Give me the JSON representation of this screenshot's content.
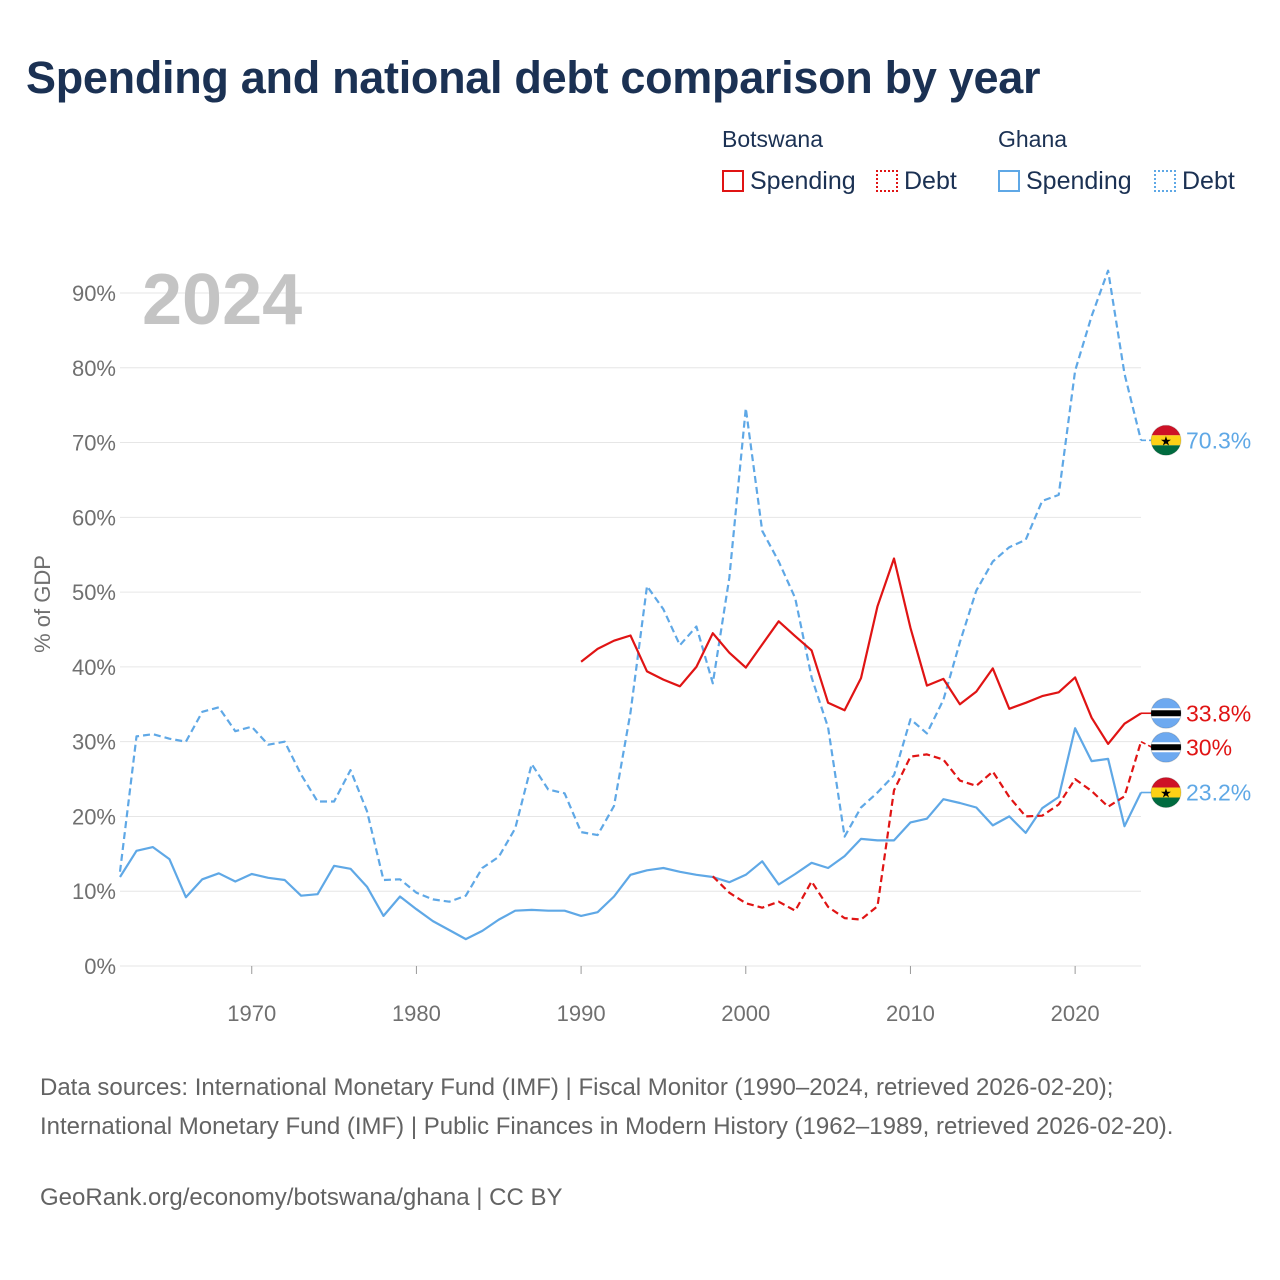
{
  "title": "Spending and national debt comparison by year",
  "legend": {
    "groups": [
      {
        "label": "Botswana",
        "items": [
          "Spending",
          "Debt"
        ]
      },
      {
        "label": "Ghana",
        "items": [
          "Spending",
          "Debt"
        ]
      }
    ]
  },
  "year_label": "2024",
  "source": "Data sources: International Monetary Fund (IMF) | Fiscal Monitor (1990–2024, retrieved 2026-02-20); International Monetary Fund (IMF) | Public Finances in Modern History (1962–1989, retrieved 2026-02-20).",
  "credit": "GeoRank.org/economy/botswana/ghana | CC BY",
  "colors": {
    "botswana": "#e01414",
    "ghana": "#5fa8e6",
    "grid": "#e6e6e6",
    "axis_text": "#707070",
    "year_watermark": "#c4c4c4"
  },
  "end_labels": [
    {
      "series": "Ghana Debt",
      "text": "70.3%",
      "flag": "ghana"
    },
    {
      "series": "Botswana Spending",
      "text": "33.8%",
      "flag": "botswana"
    },
    {
      "series": "Botswana Debt",
      "text": "30%",
      "flag": "botswana"
    },
    {
      "series": "Ghana Spending",
      "text": "23.2%",
      "flag": "ghana"
    }
  ],
  "chart_data": {
    "type": "line",
    "title": "Spending and national debt comparison by year",
    "xlabel": "",
    "ylabel": "% of GDP",
    "xlim": [
      1962,
      2024
    ],
    "ylim": [
      0,
      90
    ],
    "xticks": [
      1970,
      1980,
      1990,
      2000,
      2010,
      2020
    ],
    "yticks": [
      0,
      10,
      20,
      30,
      40,
      50,
      60,
      70,
      80,
      90
    ],
    "ytick_labels": [
      "0%",
      "10%",
      "20%",
      "30%",
      "40%",
      "50%",
      "60%",
      "70%",
      "80%",
      "90%"
    ],
    "grid": true,
    "series": [
      {
        "name": "Ghana Debt",
        "country": "Ghana",
        "kind": "Debt",
        "style": "dashed",
        "color": "#5fa8e6",
        "points": [
          [
            1962,
            12.6
          ],
          [
            1963,
            30.7
          ],
          [
            1964,
            31.0
          ],
          [
            1965,
            30.4
          ],
          [
            1966,
            30.0
          ],
          [
            1967,
            34.0
          ],
          [
            1968,
            34.6
          ],
          [
            1969,
            31.4
          ],
          [
            1970,
            32.0
          ],
          [
            1971,
            29.6
          ],
          [
            1972,
            30.0
          ],
          [
            1973,
            25.6
          ],
          [
            1974,
            22.0
          ],
          [
            1975,
            22.0
          ],
          [
            1976,
            26.2
          ],
          [
            1977,
            20.7
          ],
          [
            1978,
            11.5
          ],
          [
            1979,
            11.6
          ],
          [
            1980,
            9.8
          ],
          [
            1981,
            8.9
          ],
          [
            1982,
            8.6
          ],
          [
            1983,
            9.4
          ],
          [
            1984,
            13.1
          ],
          [
            1985,
            14.6
          ],
          [
            1986,
            18.4
          ],
          [
            1987,
            27.0
          ],
          [
            1988,
            23.6
          ],
          [
            1989,
            23.1
          ],
          [
            1990,
            17.9
          ],
          [
            1991,
            17.5
          ],
          [
            1992,
            21.4
          ],
          [
            1993,
            33.9
          ],
          [
            1994,
            50.8
          ],
          [
            1995,
            47.7
          ],
          [
            1996,
            42.9
          ],
          [
            1997,
            45.4
          ],
          [
            1998,
            37.8
          ],
          [
            1999,
            51.9
          ],
          [
            2000,
            74.6
          ],
          [
            2001,
            58.2
          ],
          [
            2002,
            54.1
          ],
          [
            2003,
            49.2
          ],
          [
            2004,
            38.6
          ],
          [
            2005,
            31.9
          ],
          [
            2006,
            17.3
          ],
          [
            2007,
            21.2
          ],
          [
            2008,
            23.2
          ],
          [
            2009,
            25.5
          ],
          [
            2010,
            33.0
          ],
          [
            2011,
            31.1
          ],
          [
            2012,
            35.6
          ],
          [
            2013,
            43.3
          ],
          [
            2014,
            50.2
          ],
          [
            2015,
            54.1
          ],
          [
            2016,
            56.0
          ],
          [
            2017,
            57.0
          ],
          [
            2018,
            62.2
          ],
          [
            2019,
            63.0
          ],
          [
            2020,
            79.6
          ],
          [
            2021,
            86.9
          ],
          [
            2022,
            93.0
          ],
          [
            2023,
            79.2
          ],
          [
            2024,
            70.3
          ]
        ]
      },
      {
        "name": "Ghana Spending",
        "country": "Ghana",
        "kind": "Spending",
        "style": "solid",
        "color": "#5fa8e6",
        "points": [
          [
            1962,
            11.9
          ],
          [
            1963,
            15.4
          ],
          [
            1964,
            15.9
          ],
          [
            1965,
            14.3
          ],
          [
            1966,
            9.2
          ],
          [
            1967,
            11.6
          ],
          [
            1968,
            12.4
          ],
          [
            1969,
            11.3
          ],
          [
            1970,
            12.3
          ],
          [
            1971,
            11.8
          ],
          [
            1972,
            11.5
          ],
          [
            1973,
            9.4
          ],
          [
            1974,
            9.6
          ],
          [
            1975,
            13.4
          ],
          [
            1976,
            13.0
          ],
          [
            1977,
            10.6
          ],
          [
            1978,
            6.7
          ],
          [
            1979,
            9.3
          ],
          [
            1980,
            7.6
          ],
          [
            1981,
            6.0
          ],
          [
            1982,
            4.8
          ],
          [
            1983,
            3.6
          ],
          [
            1984,
            4.7
          ],
          [
            1985,
            6.2
          ],
          [
            1986,
            7.4
          ],
          [
            1987,
            7.5
          ],
          [
            1988,
            7.4
          ],
          [
            1989,
            7.4
          ],
          [
            1990,
            6.7
          ],
          [
            1991,
            7.2
          ],
          [
            1992,
            9.3
          ],
          [
            1993,
            12.2
          ],
          [
            1994,
            12.8
          ],
          [
            1995,
            13.1
          ],
          [
            1996,
            12.6
          ],
          [
            1997,
            12.2
          ],
          [
            1998,
            11.9
          ],
          [
            1999,
            11.2
          ],
          [
            2000,
            12.2
          ],
          [
            2001,
            14.0
          ],
          [
            2002,
            10.9
          ],
          [
            2003,
            12.3
          ],
          [
            2004,
            13.8
          ],
          [
            2005,
            13.1
          ],
          [
            2006,
            14.7
          ],
          [
            2007,
            17.0
          ],
          [
            2008,
            16.8
          ],
          [
            2009,
            16.8
          ],
          [
            2010,
            19.2
          ],
          [
            2011,
            19.7
          ],
          [
            2012,
            22.3
          ],
          [
            2013,
            21.8
          ],
          [
            2014,
            21.2
          ],
          [
            2015,
            18.8
          ],
          [
            2016,
            20.0
          ],
          [
            2017,
            17.8
          ],
          [
            2018,
            21.1
          ],
          [
            2019,
            22.6
          ],
          [
            2020,
            31.8
          ],
          [
            2021,
            27.4
          ],
          [
            2022,
            27.7
          ],
          [
            2023,
            18.7
          ],
          [
            2024,
            23.2
          ]
        ]
      },
      {
        "name": "Botswana Spending",
        "country": "Botswana",
        "kind": "Spending",
        "style": "solid",
        "color": "#e01414",
        "points": [
          [
            1990,
            40.7
          ],
          [
            1991,
            42.4
          ],
          [
            1992,
            43.5
          ],
          [
            1993,
            44.2
          ],
          [
            1994,
            39.4
          ],
          [
            1995,
            38.3
          ],
          [
            1996,
            37.4
          ],
          [
            1997,
            40.0
          ],
          [
            1998,
            44.5
          ],
          [
            1999,
            41.9
          ],
          [
            2000,
            39.9
          ],
          [
            2001,
            43.0
          ],
          [
            2002,
            46.1
          ],
          [
            2003,
            44.1
          ],
          [
            2004,
            42.2
          ],
          [
            2005,
            35.2
          ],
          [
            2006,
            34.2
          ],
          [
            2007,
            38.5
          ],
          [
            2008,
            48.1
          ],
          [
            2009,
            54.5
          ],
          [
            2010,
            45.2
          ],
          [
            2011,
            37.5
          ],
          [
            2012,
            38.4
          ],
          [
            2013,
            35.0
          ],
          [
            2014,
            36.7
          ],
          [
            2015,
            39.8
          ],
          [
            2016,
            34.4
          ],
          [
            2017,
            35.2
          ],
          [
            2018,
            36.1
          ],
          [
            2019,
            36.6
          ],
          [
            2020,
            38.6
          ],
          [
            2021,
            33.2
          ],
          [
            2022,
            29.7
          ],
          [
            2023,
            32.4
          ],
          [
            2024,
            33.8
          ]
        ]
      },
      {
        "name": "Botswana Debt",
        "country": "Botswana",
        "kind": "Debt",
        "style": "dashed",
        "color": "#e01414",
        "points": [
          [
            1998,
            12.0
          ],
          [
            1999,
            9.8
          ],
          [
            2000,
            8.4
          ],
          [
            2001,
            7.8
          ],
          [
            2002,
            8.6
          ],
          [
            2003,
            7.4
          ],
          [
            2004,
            11.3
          ],
          [
            2005,
            7.9
          ],
          [
            2006,
            6.4
          ],
          [
            2007,
            6.2
          ],
          [
            2008,
            8.0
          ],
          [
            2009,
            23.5
          ],
          [
            2010,
            28.0
          ],
          [
            2011,
            28.3
          ],
          [
            2012,
            27.6
          ],
          [
            2013,
            24.8
          ],
          [
            2014,
            24.1
          ],
          [
            2015,
            26.0
          ],
          [
            2016,
            22.6
          ],
          [
            2017,
            20.0
          ],
          [
            2018,
            20.1
          ],
          [
            2019,
            21.6
          ],
          [
            2020,
            25.0
          ],
          [
            2021,
            23.4
          ],
          [
            2022,
            21.3
          ],
          [
            2023,
            22.7
          ],
          [
            2024,
            30.0
          ]
        ]
      }
    ]
  }
}
